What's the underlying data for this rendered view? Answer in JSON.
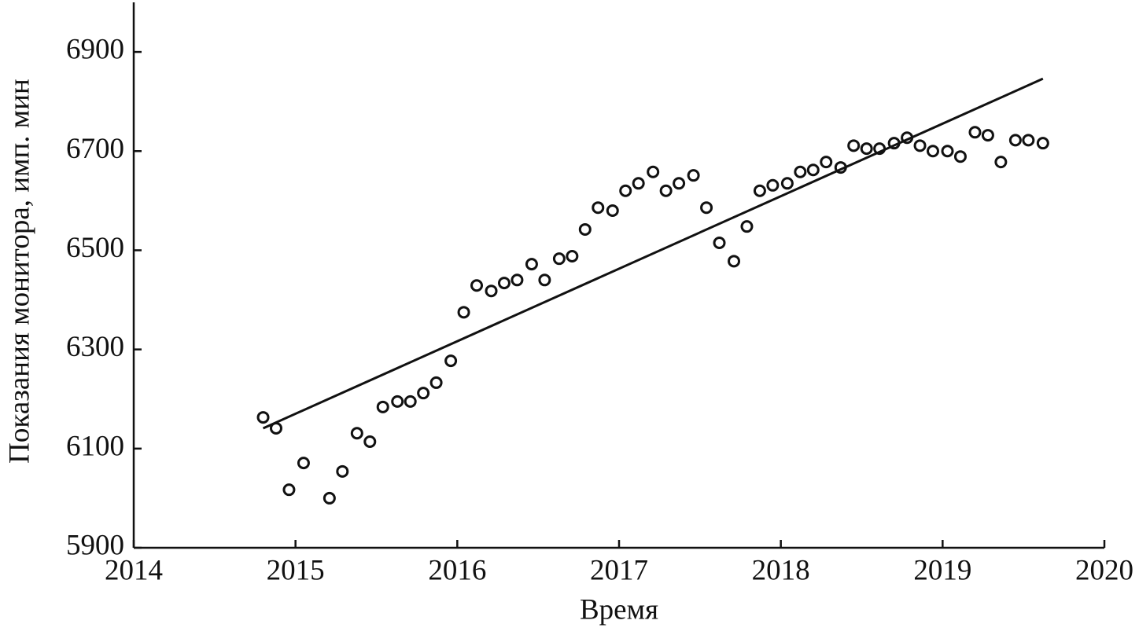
{
  "chart_data": {
    "type": "scatter",
    "xlabel": "Время",
    "ylabel": "Показания монитора, имп. мин",
    "xlim": [
      2014,
      2020
    ],
    "xticks": [
      2014,
      2015,
      2016,
      2017,
      2018,
      2019,
      2020
    ],
    "ylim": [
      5900,
      7000
    ],
    "yticks": [
      5900,
      6100,
      6300,
      6500,
      6700,
      6900
    ],
    "grid": false,
    "color": "#111111",
    "x": [
      2014.8,
      2014.88,
      2014.96,
      2015.05,
      2015.21,
      2015.29,
      2015.38,
      2015.46,
      2015.54,
      2015.63,
      2015.71,
      2015.79,
      2015.87,
      2015.96,
      2016.04,
      2016.12,
      2016.21,
      2016.29,
      2016.37,
      2016.46,
      2016.54,
      2016.63,
      2016.71,
      2016.79,
      2016.87,
      2016.96,
      2017.04,
      2017.12,
      2017.21,
      2017.29,
      2017.37,
      2017.46,
      2017.54,
      2017.62,
      2017.71,
      2017.79,
      2017.87,
      2017.95,
      2018.04,
      2018.12,
      2018.2,
      2018.28,
      2018.37,
      2018.45,
      2018.53,
      2018.61,
      2018.7,
      2018.78,
      2018.86,
      2018.94,
      2019.03,
      2019.11,
      2019.2,
      2019.28,
      2019.36,
      2019.45,
      2019.53,
      2019.62
    ],
    "values": [
      6163,
      6141,
      6017,
      6071,
      6000,
      6054,
      6131,
      6114,
      6184,
      6195,
      6195,
      6212,
      6233,
      6277,
      6375,
      6429,
      6418,
      6434,
      6440,
      6472,
      6440,
      6483,
      6488,
      6542,
      6586,
      6580,
      6620,
      6635,
      6658,
      6620,
      6635,
      6651,
      6586,
      6515,
      6478,
      6548,
      6620,
      6631,
      6635,
      6658,
      6662,
      6678,
      6667,
      6711,
      6705,
      6705,
      6716,
      6727,
      6711,
      6700,
      6700,
      6689,
      6738,
      6732,
      6678,
      6722,
      6722,
      6716
    ],
    "trend_line": {
      "x": [
        2014.8,
        2019.62
      ],
      "values": [
        6141,
        6846
      ]
    }
  }
}
